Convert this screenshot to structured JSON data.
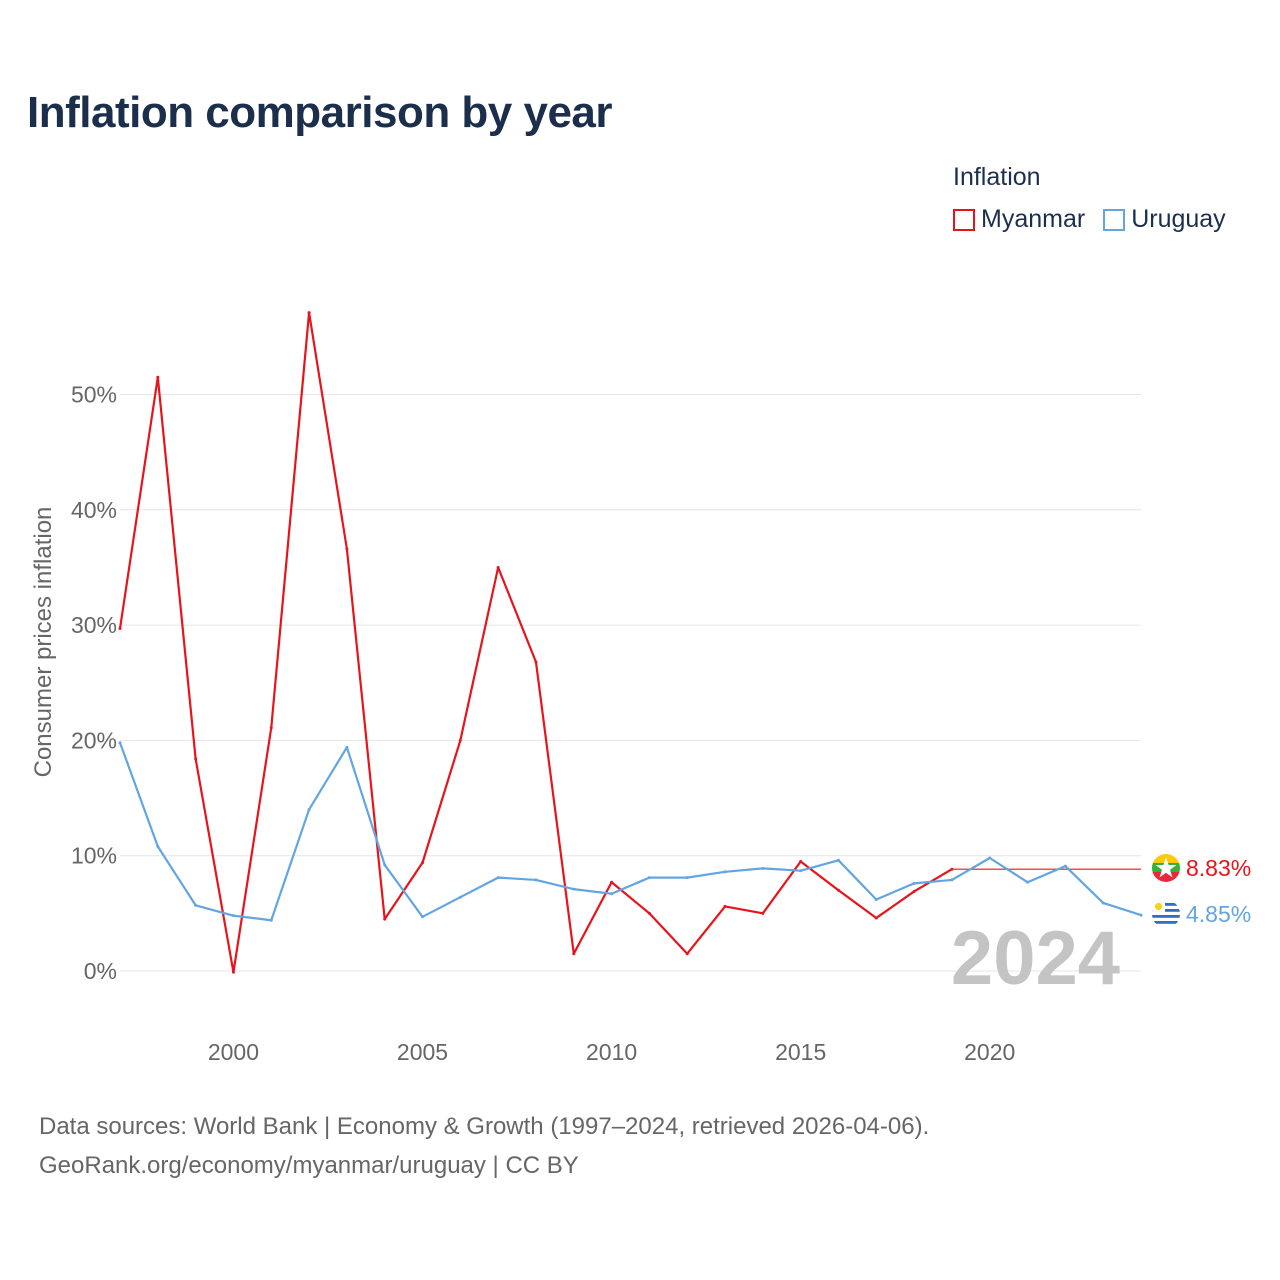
{
  "title": "Inflation comparison by year",
  "legend": {
    "title": "Inflation",
    "items": [
      {
        "label": "Myanmar",
        "color": "#e8141b"
      },
      {
        "label": "Uruguay",
        "color": "#62a5e0"
      }
    ]
  },
  "chart_data": {
    "type": "line",
    "title": "Inflation comparison by year",
    "xlabel": "",
    "ylabel": "Consumer prices inflation",
    "x": [
      1997,
      1998,
      1999,
      2000,
      2001,
      2002,
      2003,
      2004,
      2005,
      2006,
      2007,
      2008,
      2009,
      2010,
      2011,
      2012,
      2013,
      2014,
      2015,
      2016,
      2017,
      2018,
      2019,
      2020,
      2021,
      2022,
      2023,
      2024
    ],
    "xlim": [
      1997,
      2024
    ],
    "ylim": [
      -5,
      60
    ],
    "x_ticks": [
      2000,
      2005,
      2010,
      2015,
      2020
    ],
    "y_ticks": [
      0,
      10,
      20,
      30,
      40,
      50
    ],
    "y_tick_labels": [
      "0%",
      "10%",
      "20%",
      "30%",
      "40%",
      "50%"
    ],
    "series": [
      {
        "name": "Myanmar",
        "color": "#e8141b",
        "values": [
          29.7,
          51.5,
          18.4,
          -0.1,
          21.1,
          57.1,
          36.6,
          4.5,
          9.4,
          20.0,
          35.0,
          26.8,
          1.5,
          7.7,
          5.0,
          1.5,
          5.6,
          5.0,
          9.5,
          7.0,
          4.6,
          6.9,
          8.83,
          null,
          null,
          null,
          null,
          null
        ],
        "end_label": "8.83%"
      },
      {
        "name": "Uruguay",
        "color": "#62a5e0",
        "values": [
          19.8,
          10.8,
          5.7,
          4.8,
          4.4,
          14.0,
          19.4,
          9.2,
          4.7,
          6.4,
          8.1,
          7.9,
          7.1,
          6.7,
          8.1,
          8.1,
          8.6,
          8.9,
          8.7,
          9.6,
          6.2,
          7.6,
          7.9,
          9.8,
          7.7,
          9.1,
          5.9,
          4.85
        ],
        "end_label": "4.85%"
      }
    ],
    "year_watermark": "2024",
    "grid": true
  },
  "footer": {
    "line1": "Data sources: World Bank | Economy & Growth (1997–2024, retrieved 2026-04-06).",
    "line2": "GeoRank.org/economy/myanmar/uruguay | CC BY"
  }
}
